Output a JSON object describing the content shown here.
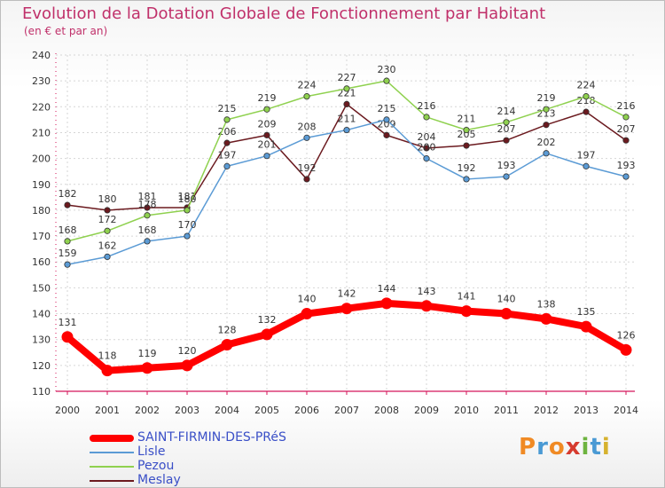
{
  "header": {
    "title": "Evolution de la Dotation Globale de Fonctionnement par Habitant",
    "subtitle": "(en € et par an)"
  },
  "logo": {
    "text": "Proxiti",
    "colors": [
      "#f08a24",
      "#4a9ad4",
      "#f08a24",
      "#d63b2f",
      "#6db33f",
      "#4a9ad4",
      "#d6b22f"
    ]
  },
  "chart_data": {
    "type": "line",
    "x": [
      2000,
      2001,
      2002,
      2003,
      2004,
      2005,
      2006,
      2007,
      2008,
      2009,
      2010,
      2011,
      2012,
      2013,
      2014
    ],
    "ylim": [
      110,
      240
    ],
    "yticks": [
      110,
      120,
      130,
      140,
      150,
      160,
      170,
      180,
      190,
      200,
      210,
      220,
      230,
      240
    ],
    "grid": true,
    "legend_position": "bottom-left",
    "series": [
      {
        "name": "Meslay",
        "color": "#6b1a1f",
        "values": [
          182,
          180,
          181,
          181,
          206,
          209,
          192,
          221,
          209,
          204,
          205,
          207,
          213,
          218,
          207
        ]
      },
      {
        "name": "Pezou",
        "color": "#8fd14f",
        "values": [
          168,
          172,
          178,
          180,
          215,
          219,
          224,
          227,
          230,
          216,
          211,
          214,
          219,
          224,
          216
        ]
      },
      {
        "name": "Lisle",
        "color": "#5b9bd5",
        "values": [
          159,
          162,
          168,
          170,
          197,
          201,
          208,
          211,
          215,
          200,
          192,
          193,
          202,
          197,
          193
        ]
      },
      {
        "name": "SAINT-FIRMIN-DES-PRéS",
        "color": "#ff0000",
        "values": [
          131,
          118,
          119,
          120,
          128,
          132,
          140,
          142,
          144,
          143,
          141,
          140,
          138,
          135,
          126
        ]
      }
    ]
  }
}
